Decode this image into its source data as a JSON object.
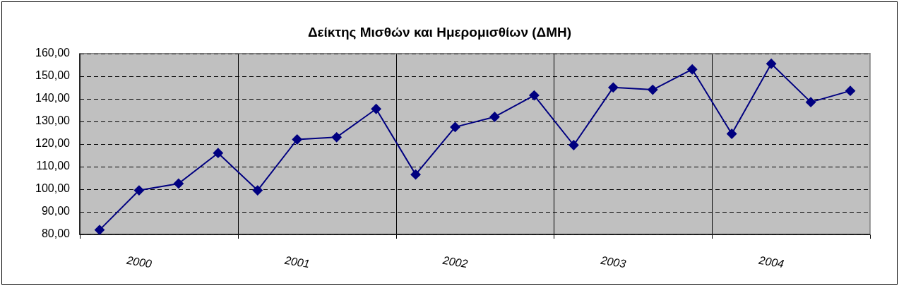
{
  "chart_data": {
    "type": "line",
    "title": "Δείκτης Μισθών και Ημερομισθίων (ΔΜΗ)",
    "categories": [
      null,
      "2000",
      null,
      null,
      null,
      "2001",
      null,
      null,
      null,
      "2002",
      null,
      null,
      null,
      "2003",
      null,
      null,
      null,
      "2004",
      null,
      null
    ],
    "series": [
      {
        "color": "#000080",
        "values": [
          82,
          99.5,
          102.5,
          116,
          99.5,
          122,
          123,
          135.5,
          106.5,
          127.5,
          132,
          141.5,
          119.5,
          145,
          144,
          153,
          124.5,
          155.5,
          138.5,
          143.5
        ]
      }
    ],
    "ylim": [
      80,
      160
    ],
    "yticks": [
      {
        "value": 80,
        "label": "80,00"
      },
      {
        "value": 90,
        "label": "90,00"
      },
      {
        "value": 100,
        "label": "100,00"
      },
      {
        "value": 110,
        "label": "110,00"
      },
      {
        "value": 120,
        "label": "120,00"
      },
      {
        "value": 130,
        "label": "130,00"
      },
      {
        "value": 140,
        "label": "140,00"
      },
      {
        "value": 150,
        "label": "150,00"
      },
      {
        "value": 160,
        "label": "160,00"
      }
    ],
    "grid": true,
    "legend": false,
    "marker": "diamond",
    "line_style": "solid"
  }
}
